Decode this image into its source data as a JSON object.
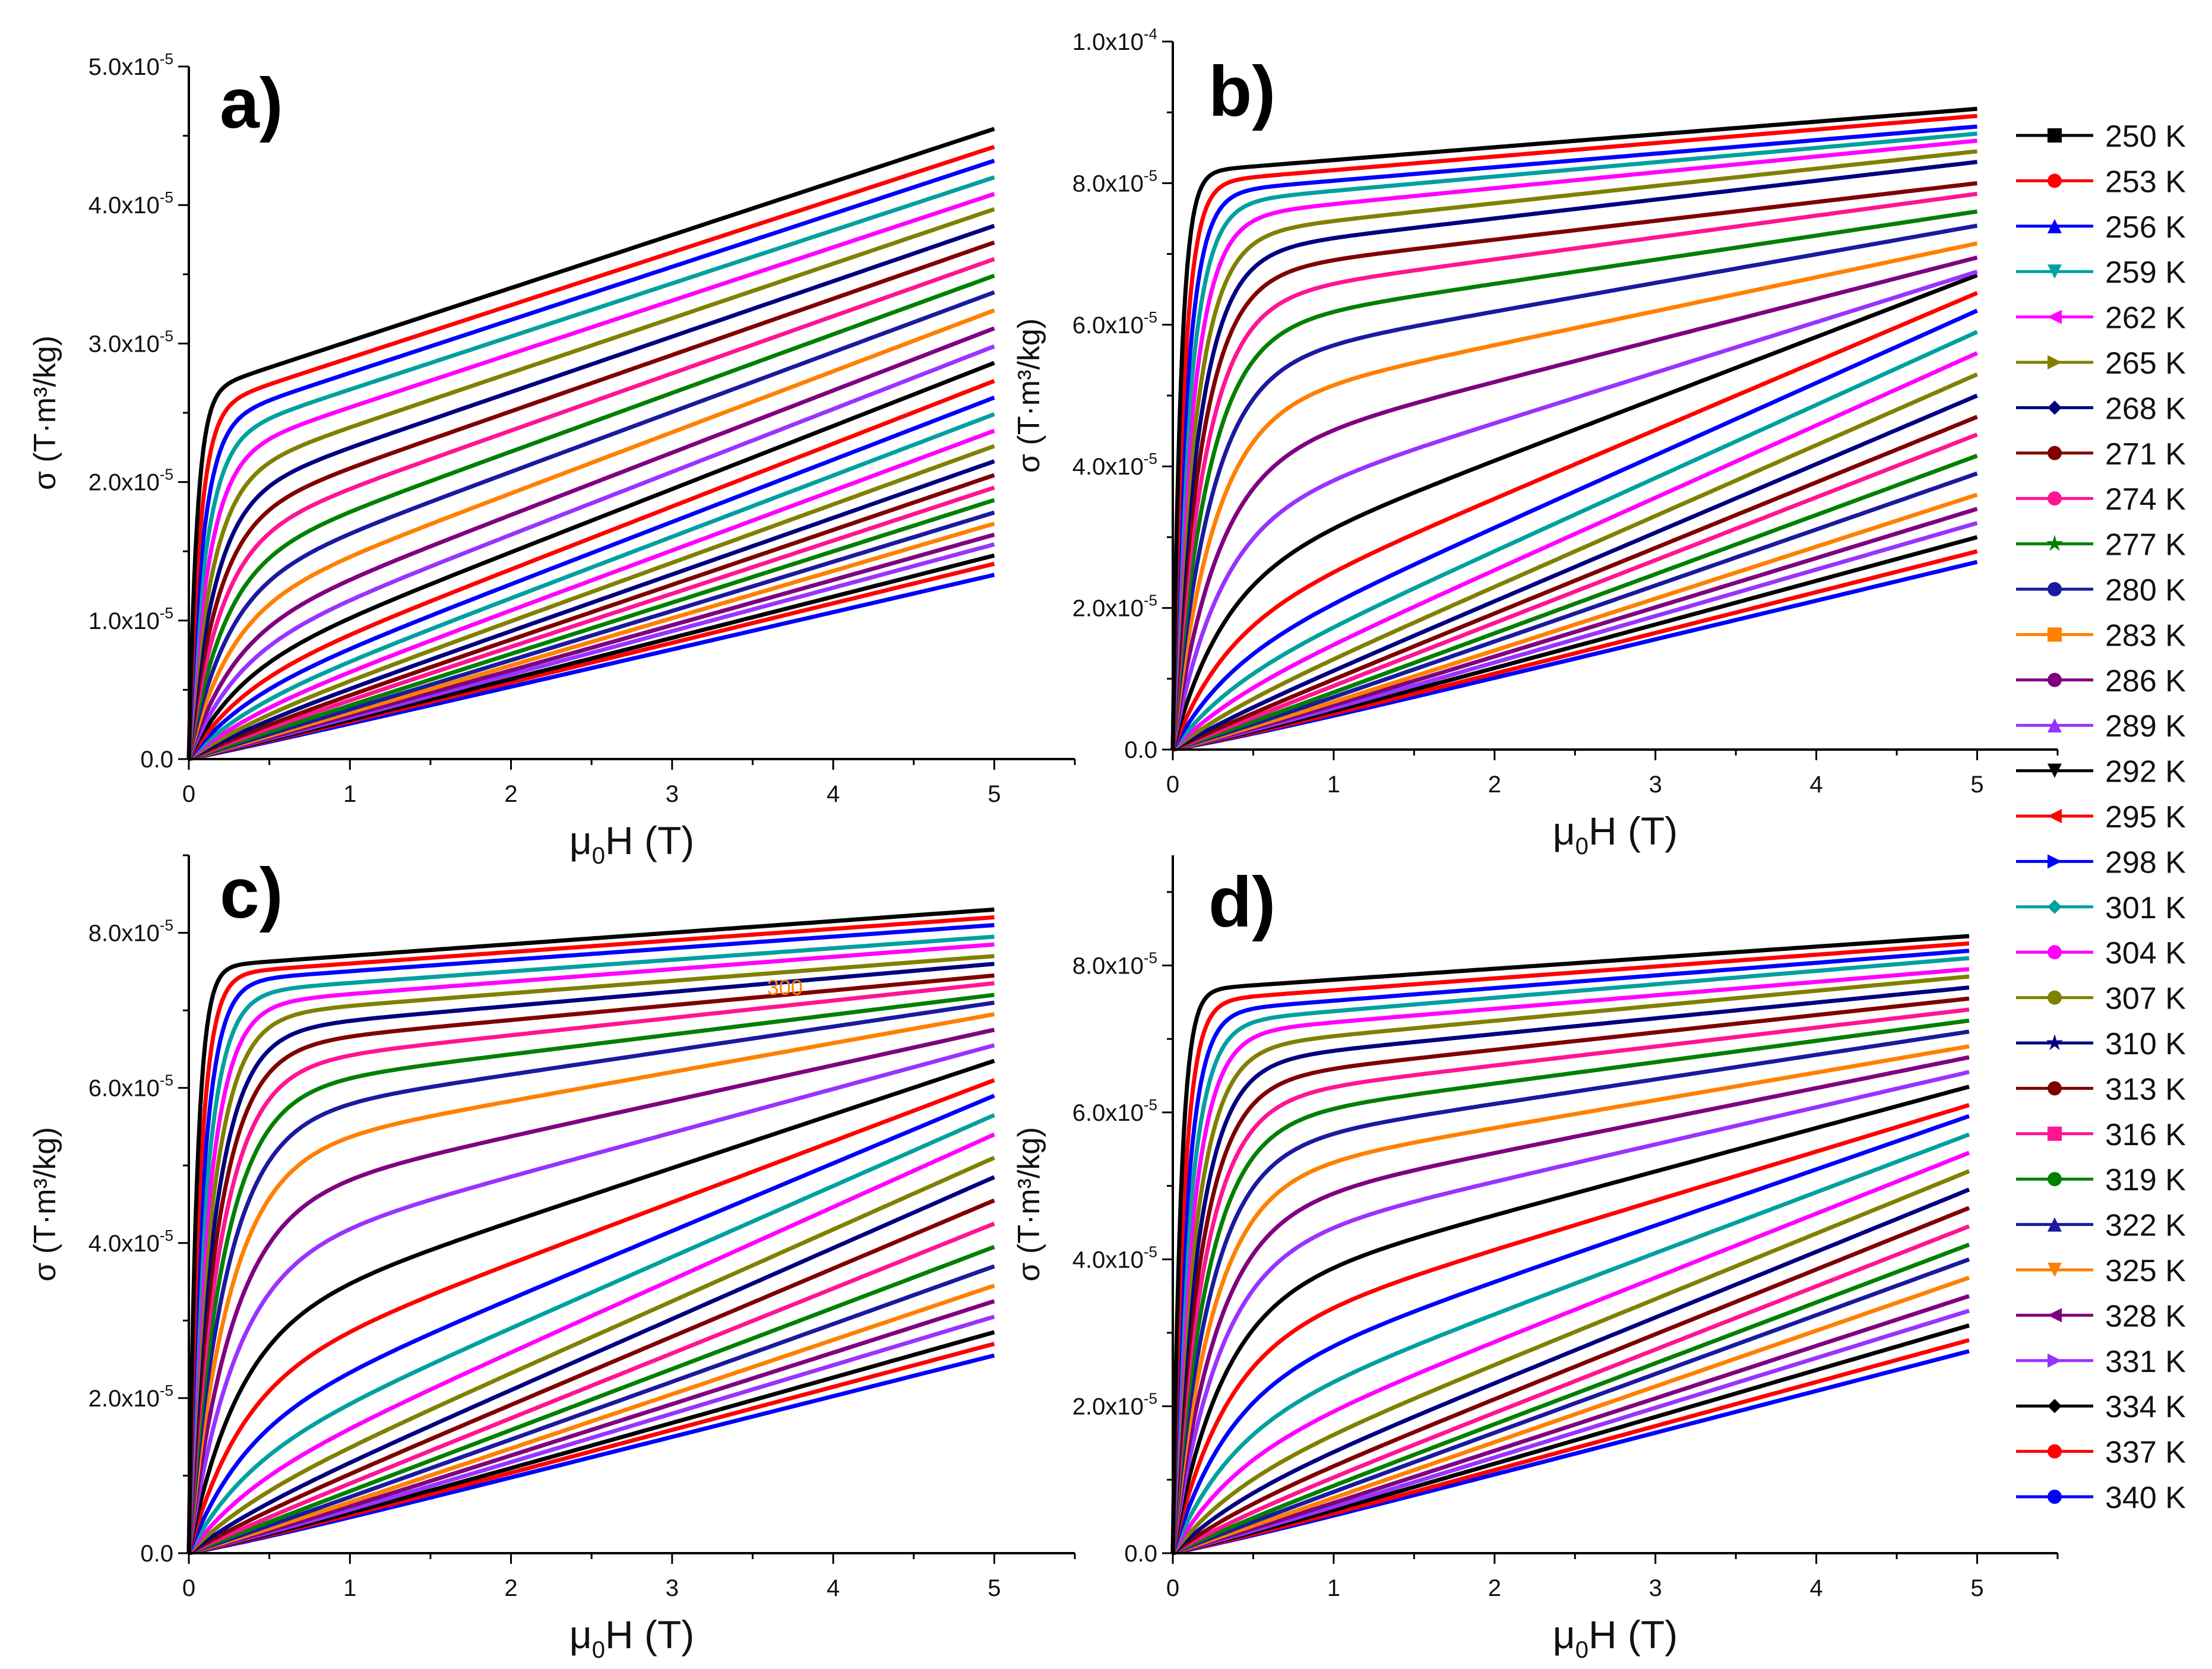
{
  "chart_data": {
    "legend": {
      "placement": "right",
      "entries": [
        {
          "label": "250 K",
          "color": "#000000",
          "marker": "square"
        },
        {
          "label": "253 K",
          "color": "#ff0000",
          "marker": "circle"
        },
        {
          "label": "256 K",
          "color": "#0000ff",
          "marker": "triangle-up"
        },
        {
          "label": "259 K",
          "color": "#00a0a0",
          "marker": "triangle-down"
        },
        {
          "label": "262 K",
          "color": "#ff00ff",
          "marker": "triangle-left"
        },
        {
          "label": "265 K",
          "color": "#808000",
          "marker": "triangle-right"
        },
        {
          "label": "268 K",
          "color": "#000080",
          "marker": "diamond"
        },
        {
          "label": "271 K",
          "color": "#800000",
          "marker": "circle"
        },
        {
          "label": "274 K",
          "color": "#ff1493",
          "marker": "circle"
        },
        {
          "label": "277 K",
          "color": "#008000",
          "marker": "star"
        },
        {
          "label": "280 K",
          "color": "#1a1aa0",
          "marker": "circle"
        },
        {
          "label": "283 K",
          "color": "#ff8000",
          "marker": "square"
        },
        {
          "label": "286 K",
          "color": "#800080",
          "marker": "circle"
        },
        {
          "label": "289 K",
          "color": "#9933ff",
          "marker": "triangle-up"
        },
        {
          "label": "292 K",
          "color": "#000000",
          "marker": "triangle-down"
        },
        {
          "label": "295 K",
          "color": "#ff0000",
          "marker": "triangle-left"
        },
        {
          "label": "298 K",
          "color": "#0000ff",
          "marker": "triangle-right"
        },
        {
          "label": "301 K",
          "color": "#00a0a0",
          "marker": "diamond"
        },
        {
          "label": "304 K",
          "color": "#ff00ff",
          "marker": "circle"
        },
        {
          "label": "307 K",
          "color": "#808000",
          "marker": "circle"
        },
        {
          "label": "310 K",
          "color": "#000080",
          "marker": "star"
        },
        {
          "label": "313 K",
          "color": "#800000",
          "marker": "circle"
        },
        {
          "label": "316 K",
          "color": "#ff1493",
          "marker": "square"
        },
        {
          "label": "319 K",
          "color": "#008000",
          "marker": "circle"
        },
        {
          "label": "322 K",
          "color": "#1a1aa0",
          "marker": "triangle-up"
        },
        {
          "label": "325 K",
          "color": "#ff8000",
          "marker": "triangle-down"
        },
        {
          "label": "328 K",
          "color": "#800080",
          "marker": "triangle-left"
        },
        {
          "label": "331 K",
          "color": "#9933ff",
          "marker": "triangle-right"
        },
        {
          "label": "334 K",
          "color": "#000000",
          "marker": "diamond"
        },
        {
          "label": "337 K",
          "color": "#ff0000",
          "marker": "circle"
        },
        {
          "label": "340 K",
          "color": "#0000ff",
          "marker": "circle"
        }
      ]
    },
    "panels": [
      {
        "label": "a)",
        "type": "line",
        "xlabel_main": "μ",
        "xlabel_sub": "0",
        "xlabel_rest": "H (T)",
        "ylabel": "σ (T·m³/kg)",
        "xlim": [
          0,
          5.5
        ],
        "ylim": [
          0,
          5e-05
        ],
        "xticks": [
          0,
          1,
          2,
          3,
          4,
          5
        ],
        "yticks": [
          {
            "value": 0,
            "label": "0.0"
          },
          {
            "value": 1e-05,
            "label": "1.0x10",
            "exp": "-5"
          },
          {
            "value": 2e-05,
            "label": "2.0x10",
            "exp": "-5"
          },
          {
            "value": 3e-05,
            "label": "3.0x10",
            "exp": "-5"
          },
          {
            "value": 4e-05,
            "label": "4.0x10",
            "exp": "-5"
          },
          {
            "value": 5e-05,
            "label": "5.0x10",
            "exp": "-5"
          }
        ],
        "x_max_data": 5,
        "series_end_values": [
          4.55e-05,
          4.42e-05,
          4.32e-05,
          4.2e-05,
          4.08e-05,
          3.97e-05,
          3.85e-05,
          3.73e-05,
          3.61e-05,
          3.49e-05,
          3.37e-05,
          3.24e-05,
          3.11e-05,
          2.98e-05,
          2.86e-05,
          2.73e-05,
          2.61e-05,
          2.49e-05,
          2.37e-05,
          2.26e-05,
          2.15e-05,
          2.05e-05,
          1.96e-05,
          1.87e-05,
          1.78e-05,
          1.7e-05,
          1.62e-05,
          1.55e-05,
          1.47e-05,
          1.41e-05,
          1.33e-05
        ],
        "series_knee_values": [
          2.75e-05,
          2.63e-05,
          2.52e-05,
          2.4e-05,
          2.27e-05,
          2.12e-05,
          1.97e-05,
          1.82e-05,
          1.67e-05,
          1.5e-05,
          1.34e-05,
          1.17e-05,
          1e-05,
          8.5e-06,
          7.2e-06,
          6e-06,
          5e-06,
          4.1e-06,
          3.4e-06,
          2.8e-06,
          2.3e-06,
          1.9e-06,
          1.6e-06,
          1.3e-06,
          1.1e-06,
          9.5e-07,
          8.5e-07,
          7.8e-07,
          7.2e-07,
          6.8e-07,
          6.4e-07
        ]
      },
      {
        "label": "b)",
        "type": "line",
        "xlabel_main": "μ",
        "xlabel_sub": "0",
        "xlabel_rest": "H (T)",
        "ylabel": "σ (T·m³/kg)",
        "xlim": [
          0,
          5.5
        ],
        "ylim": [
          0,
          0.0001
        ],
        "xticks": [
          0,
          1,
          2,
          3,
          4,
          5
        ],
        "yticks": [
          {
            "value": 0,
            "label": "0.0"
          },
          {
            "value": 2e-05,
            "label": "2.0x10",
            "exp": "-5"
          },
          {
            "value": 4e-05,
            "label": "4.0x10",
            "exp": "-5"
          },
          {
            "value": 6e-05,
            "label": "6.0x10",
            "exp": "-5"
          },
          {
            "value": 8e-05,
            "label": "8.0x10",
            "exp": "-5"
          },
          {
            "value": 0.0001,
            "label": "1.0x10",
            "exp": "-4"
          }
        ],
        "x_max_data": 5,
        "series_end_values": [
          9.05e-05,
          8.95e-05,
          8.8e-05,
          8.7e-05,
          8.6e-05,
          8.45e-05,
          8.3e-05,
          8e-05,
          7.85e-05,
          7.6e-05,
          7.4e-05,
          7.15e-05,
          6.95e-05,
          6.75e-05,
          6.7e-05,
          6.45e-05,
          6.2e-05,
          5.9e-05,
          5.6e-05,
          5.3e-05,
          5e-05,
          4.7e-05,
          4.45e-05,
          4.15e-05,
          3.9e-05,
          3.6e-05,
          3.4e-05,
          3.2e-05,
          3e-05,
          2.8e-05,
          2.65e-05
        ],
        "series_knee_values": [
          8.2e-05,
          8.05e-05,
          7.9e-05,
          7.75e-05,
          7.55e-05,
          7.3e-05,
          7.05e-05,
          6.75e-05,
          6.4e-05,
          6e-05,
          5.5e-05,
          4.9e-05,
          4.2e-05,
          3.4e-05,
          2.6e-05,
          1.9e-05,
          1.4e-05,
          1.05e-05,
          8e-06,
          6e-06,
          4.5e-06,
          3.5e-06,
          2.8e-06,
          2.2e-06,
          1.8e-06,
          1.5e-06,
          1.3e-06,
          1.1e-06,
          1e-06,
          9e-07,
          8e-07
        ]
      },
      {
        "label": "c)",
        "type": "line",
        "xlabel_main": "μ",
        "xlabel_sub": "0",
        "xlabel_rest": "H (T)",
        "ylabel": "σ (T·m³/kg)",
        "xlim": [
          0,
          5.5
        ],
        "ylim": [
          0,
          9e-05
        ],
        "xticks": [
          0,
          1,
          2,
          3,
          4,
          5
        ],
        "yticks": [
          {
            "value": 0,
            "label": "0.0"
          },
          {
            "value": 2e-05,
            "label": "2.0x10",
            "exp": "-5"
          },
          {
            "value": 4e-05,
            "label": "4.0x10",
            "exp": "-5"
          },
          {
            "value": 6e-05,
            "label": "6.0x10",
            "exp": "-5"
          },
          {
            "value": 8e-05,
            "label": "8.0x10",
            "exp": "-5"
          }
        ],
        "x_max_data": 5,
        "annotation": {
          "text": "300",
          "x": 3.7,
          "y": 7.2e-05,
          "color": "#ff8000"
        },
        "series_end_values": [
          8.3e-05,
          8.2e-05,
          8.1e-05,
          7.95e-05,
          7.85e-05,
          7.7e-05,
          7.6e-05,
          7.45e-05,
          7.35e-05,
          7.2e-05,
          7.1e-05,
          6.95e-05,
          6.75e-05,
          6.55e-05,
          6.35e-05,
          6.1e-05,
          5.9e-05,
          5.65e-05,
          5.4e-05,
          5.1e-05,
          4.85e-05,
          4.55e-05,
          4.25e-05,
          3.95e-05,
          3.7e-05,
          3.45e-05,
          3.25e-05,
          3.05e-05,
          2.85e-05,
          2.7e-05,
          2.55e-05
        ],
        "series_knee_values": [
          7.6e-05,
          7.5e-05,
          7.4e-05,
          7.25e-05,
          7.1e-05,
          6.95e-05,
          6.75e-05,
          6.55e-05,
          6.3e-05,
          6e-05,
          5.65e-05,
          5.2e-05,
          4.6e-05,
          3.9e-05,
          3.1e-05,
          2.4e-05,
          1.8e-05,
          1.35e-05,
          1e-05,
          7.5e-06,
          5.5e-06,
          4.2e-06,
          3.2e-06,
          2.5e-06,
          2e-06,
          1.6e-06,
          1.3e-06,
          1.1e-06,
          1e-06,
          9e-07,
          8e-07
        ]
      },
      {
        "label": "d)",
        "type": "line",
        "xlabel_main": "μ",
        "xlabel_sub": "0",
        "xlabel_rest": "H (T)",
        "ylabel": "σ (T·m³/kg)",
        "xlim": [
          0,
          5.5
        ],
        "ylim": [
          0,
          9.5e-05
        ],
        "xticks": [
          0,
          1,
          2,
          3,
          4,
          5
        ],
        "yticks": [
          {
            "value": 0,
            "label": "0.0"
          },
          {
            "value": 2e-05,
            "label": "2.0x10",
            "exp": "-5"
          },
          {
            "value": 4e-05,
            "label": "4.0x10",
            "exp": "-5"
          },
          {
            "value": 6e-05,
            "label": "6.0x10",
            "exp": "-5"
          },
          {
            "value": 8e-05,
            "label": "8.0x10",
            "exp": "-5"
          }
        ],
        "x_max_data": 4.95,
        "series_end_values": [
          8.4e-05,
          8.3e-05,
          8.2e-05,
          8.1e-05,
          7.95e-05,
          7.85e-05,
          7.7e-05,
          7.55e-05,
          7.4e-05,
          7.25e-05,
          7.1e-05,
          6.9e-05,
          6.75e-05,
          6.55e-05,
          6.35e-05,
          6.1e-05,
          5.95e-05,
          5.7e-05,
          5.45e-05,
          5.2e-05,
          4.95e-05,
          4.7e-05,
          4.45e-05,
          4.2e-05,
          4e-05,
          3.75e-05,
          3.5e-05,
          3.3e-05,
          3.1e-05,
          2.9e-05,
          2.75e-05
        ],
        "series_knee_values": [
          7.7e-05,
          7.55e-05,
          7.4e-05,
          7.25e-05,
          7.1e-05,
          6.9e-05,
          6.7e-05,
          6.45e-05,
          6.2e-05,
          5.9e-05,
          5.55e-05,
          5.15e-05,
          4.7e-05,
          4.2e-05,
          3.6e-05,
          3e-05,
          2.4e-05,
          1.85e-05,
          1.4e-05,
          1.05e-05,
          8e-06,
          6e-06,
          4.5e-06,
          3.5e-06,
          2.8e-06,
          2.2e-06,
          1.8e-06,
          1.5e-06,
          1.3e-06,
          1.1e-06,
          1e-06
        ]
      }
    ]
  }
}
